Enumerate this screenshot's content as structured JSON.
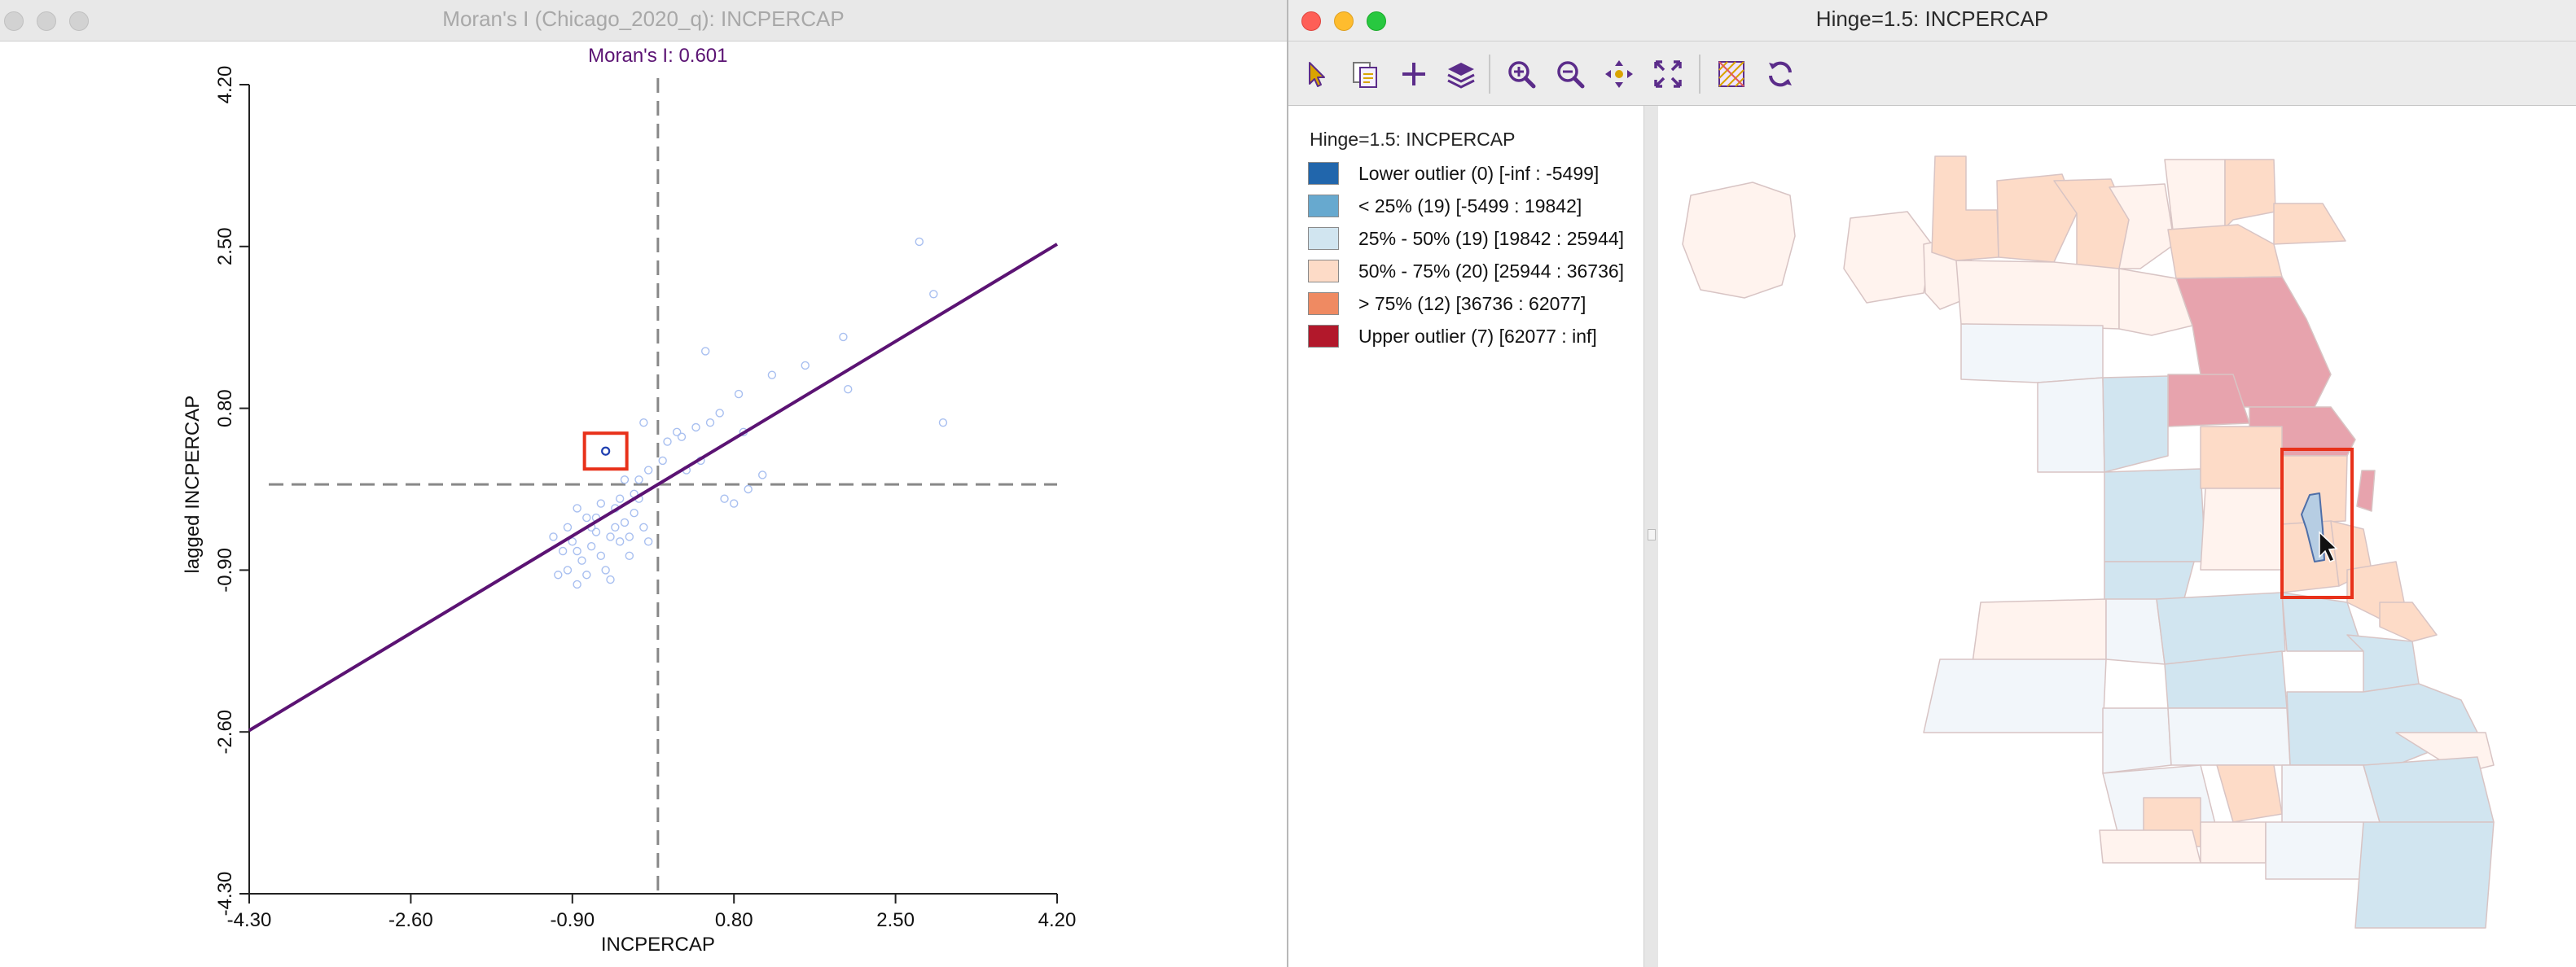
{
  "left_window": {
    "title": "Moran's I (Chicago_2020_q): INCPERCAP",
    "plot_label": "Moran's I: 0.601",
    "xlabel": "INCPERCAP",
    "ylabel": "lagged INCPERCAP",
    "accent": "#5b1373"
  },
  "right_window": {
    "title": "Hinge=1.5: INCPERCAP",
    "toolbar": [
      {
        "name": "select-tool",
        "icon": "arrow-icon"
      },
      {
        "name": "copy-image",
        "icon": "copy-icon"
      },
      {
        "name": "add",
        "icon": "plus-icon"
      },
      {
        "name": "layers",
        "icon": "layers-icon"
      },
      {
        "name": "zoom-in",
        "icon": "zoom-in-icon"
      },
      {
        "name": "zoom-out",
        "icon": "zoom-out-icon"
      },
      {
        "name": "pan",
        "icon": "pan-icon"
      },
      {
        "name": "full-extent",
        "icon": "full-extent-icon"
      },
      {
        "name": "basemap",
        "icon": "basemap-icon"
      },
      {
        "name": "refresh",
        "icon": "refresh-icon"
      }
    ]
  },
  "legend": {
    "title": "Hinge=1.5: INCPERCAP",
    "items": [
      {
        "label": "Lower outlier (0)  [-inf : -5499]",
        "color": "#2166ac"
      },
      {
        "label": "< 25% (19)  [-5499 : 19842]",
        "color": "#67a9cf"
      },
      {
        "label": "25% - 50% (19)  [19842 : 25944]",
        "color": "#d1e5f0"
      },
      {
        "label": "50% - 75% (20)  [25944 : 36736]",
        "color": "#fddbc7"
      },
      {
        "label": "> 75% (12)  [36736 : 62077]",
        "color": "#ef8a62"
      },
      {
        "label": "Upper outlier (7)  [62077 : inf]",
        "color": "#b2182b"
      }
    ]
  },
  "chart_data": {
    "type": "scatter",
    "title": "Moran's I: 0.601",
    "xlabel": "INCPERCAP",
    "ylabel": "lagged INCPERCAP",
    "xlim": [
      -4.3,
      4.2
    ],
    "ylim": [
      -4.3,
      4.2
    ],
    "x_ticks": [
      "-4.30",
      "-2.60",
      "-0.90",
      "0.80",
      "2.50",
      "4.20"
    ],
    "y_ticks": [
      "-4.30",
      "-2.60",
      "-0.90",
      "0.80",
      "2.50",
      "4.20"
    ],
    "slope": 0.601,
    "selected_index": 0,
    "points": [
      [
        -0.55,
        0.35
      ],
      [
        -0.85,
        -0.25
      ],
      [
        -0.75,
        -0.35
      ],
      [
        -0.95,
        -0.45
      ],
      [
        -0.65,
        -0.5
      ],
      [
        -0.9,
        -0.6
      ],
      [
        -0.7,
        -0.65
      ],
      [
        -1.0,
        -0.7
      ],
      [
        -0.8,
        -0.8
      ],
      [
        -0.6,
        -0.75
      ],
      [
        -0.5,
        -0.55
      ],
      [
        -0.45,
        -0.45
      ],
      [
        -0.4,
        -0.6
      ],
      [
        -0.35,
        -0.4
      ],
      [
        -0.25,
        -0.3
      ],
      [
        -0.3,
        -0.55
      ],
      [
        -0.55,
        -0.9
      ],
      [
        -0.75,
        -0.95
      ],
      [
        -0.95,
        -0.9
      ],
      [
        -0.85,
        -1.05
      ],
      [
        -1.05,
        -0.95
      ],
      [
        -1.1,
        -0.55
      ],
      [
        -0.2,
        -0.15
      ],
      [
        -0.15,
        -0.45
      ],
      [
        -0.6,
        -0.2
      ],
      [
        -0.4,
        -0.15
      ],
      [
        -0.3,
        -0.75
      ],
      [
        -0.5,
        -1.0
      ],
      [
        -0.1,
        -0.6
      ],
      [
        -0.7,
        -0.45
      ],
      [
        -0.85,
        -0.7
      ],
      [
        -0.65,
        -0.35
      ],
      [
        -0.45,
        -0.25
      ],
      [
        -0.25,
        -0.1
      ],
      [
        -0.2,
        0.05
      ],
      [
        -0.35,
        0.05
      ],
      [
        -0.1,
        0.15
      ],
      [
        -0.15,
        0.65
      ],
      [
        0.05,
        0.25
      ],
      [
        0.1,
        0.45
      ],
      [
        0.2,
        0.55
      ],
      [
        0.25,
        0.5
      ],
      [
        0.4,
        0.6
      ],
      [
        0.55,
        0.65
      ],
      [
        0.3,
        0.15
      ],
      [
        0.45,
        0.25
      ],
      [
        0.65,
        0.75
      ],
      [
        0.85,
        0.95
      ],
      [
        0.9,
        0.55
      ],
      [
        1.1,
        0.1
      ],
      [
        0.95,
        -0.05
      ],
      [
        0.8,
        -0.2
      ],
      [
        0.7,
        -0.15
      ],
      [
        1.2,
        1.15
      ],
      [
        1.55,
        1.25
      ],
      [
        2.0,
        1.0
      ],
      [
        1.95,
        1.55
      ],
      [
        2.75,
        2.55
      ],
      [
        2.9,
        2.0
      ],
      [
        3.0,
        0.65
      ],
      [
        0.5,
        1.4
      ]
    ]
  }
}
